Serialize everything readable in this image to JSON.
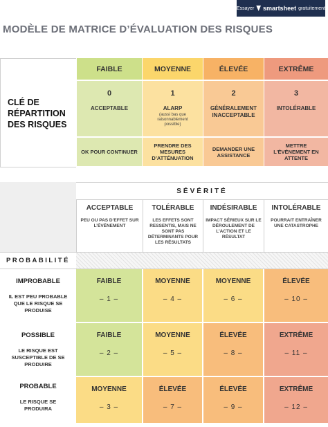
{
  "banner": {
    "prefix": "Essayer",
    "brand": "smartsheet",
    "suffix": "gratuitement"
  },
  "title": "MODÈLE DE MATRICE D’ÉVALUATION DES RISQUES",
  "colors": {
    "green": "#cde08a",
    "yellow": "#fbd66b",
    "orange": "#f7b265",
    "red": "#ee9a7e",
    "banner": "#1f2f4f"
  },
  "key": {
    "label": "CLÉ DE RÉPARTITION DES RISQUES",
    "levels": [
      {
        "name": "FAIBLE",
        "num": "0",
        "label": "ACCEPTABLE",
        "sub": "",
        "action": "OK POUR CONTINUER"
      },
      {
        "name": "MOYENNE",
        "num": "1",
        "label": "ALARP",
        "sub": "(aussi bas que raisonnablement possible)",
        "action": "PRENDRE DES MESURES D’ATTÉNUATION"
      },
      {
        "name": "ÉLEVÉE",
        "num": "2",
        "label": "GÉNÉRALEMENT INACCEPTABLE",
        "sub": "",
        "action": "DEMANDER UNE ASSISTANCE"
      },
      {
        "name": "EXTRÊME",
        "num": "3",
        "label": "INTOLÉRABLE",
        "sub": "",
        "action": "METTRE L’ÉVÉNEMENT EN ATTENTE"
      }
    ]
  },
  "matrix": {
    "severity_label": "SÉVÉRITÉ",
    "probability_label": "PROBABILITÉ",
    "severity": [
      {
        "name": "ACCEPTABLE",
        "desc": "PEU OU PAS D’EFFET SUR L’ÉVÉNEMENT"
      },
      {
        "name": "TOLÉRABLE",
        "desc": "LES EFFETS SONT RESSENTIS, MAIS NE SONT PAS DÉTERMINANTS POUR LES RÉSULTATS"
      },
      {
        "name": "INDÉSIRABLE",
        "desc": "IMPACT SÉRIEUX SUR LE DÉROULEMENT DE L’ACTION ET LE RÉSULTAT"
      },
      {
        "name": "INTOLÉRABLE",
        "desc": "POURRAIT ENTRAÎNER UNE CATASTROPHE"
      }
    ],
    "rows": [
      {
        "name": "IMPROBABLE",
        "desc": "IL EST PEU PROBABLE QUE LE RISQUE SE PRODUISE",
        "cells": [
          {
            "level": "FAIBLE",
            "num": "– 1 –"
          },
          {
            "level": "MOYENNE",
            "num": "– 4 –"
          },
          {
            "level": "MOYENNE",
            "num": "– 6 –"
          },
          {
            "level": "ÉLEVÉE",
            "num": "– 10 –"
          }
        ]
      },
      {
        "name": "POSSIBLE",
        "desc": "LE RISQUE EST SUSCEPTIBLE DE SE PRODUIRE",
        "cells": [
          {
            "level": "FAIBLE",
            "num": "– 2 –"
          },
          {
            "level": "MOYENNE",
            "num": "– 5 –"
          },
          {
            "level": "ÉLEVÉE",
            "num": "– 8 –"
          },
          {
            "level": "EXTRÊME",
            "num": "– 11 –"
          }
        ]
      },
      {
        "name": "PROBABLE",
        "desc": "LE RISQUE SE PRODUIRA",
        "cells": [
          {
            "level": "MOYENNE",
            "num": "– 3 –"
          },
          {
            "level": "ÉLEVÉE",
            "num": "– 7 –"
          },
          {
            "level": "ÉLEVÉE",
            "num": "– 9 –"
          },
          {
            "level": "EXTRÊME",
            "num": "– 12 –"
          }
        ]
      }
    ]
  }
}
